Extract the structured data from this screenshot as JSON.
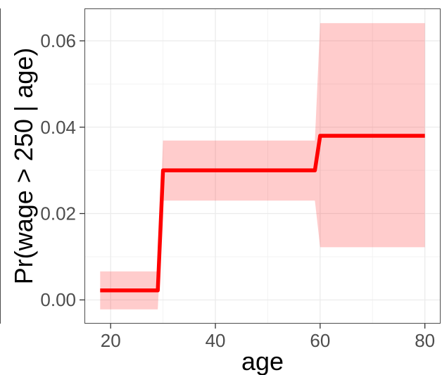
{
  "chart_data": {
    "type": "line",
    "title": "",
    "xlabel": "age",
    "ylabel": "Pr(wage > 250 | age)",
    "xlim": [
      15,
      83
    ],
    "ylim": [
      -0.0055,
      0.0675
    ],
    "x_ticks": [
      20,
      40,
      60,
      80
    ],
    "x_tick_labels": [
      "20",
      "40",
      "60",
      "80"
    ],
    "y_ticks": [
      0.0,
      0.02,
      0.04,
      0.06
    ],
    "y_tick_labels": [
      "0.00",
      "0.02",
      "0.04",
      "0.06"
    ],
    "grid": true,
    "series": [
      {
        "kind": "step-line",
        "color": "#ff0000",
        "x": [
          18,
          29,
          30,
          59,
          60,
          80
        ],
        "y": [
          0.0022,
          0.0022,
          0.03,
          0.03,
          0.038,
          0.038
        ]
      }
    ],
    "confidence_band": {
      "color": "#ff0000",
      "opacity": 0.2,
      "x": [
        18,
        29,
        30,
        59,
        60,
        80
      ],
      "lower": [
        -0.0022,
        -0.0022,
        0.023,
        0.023,
        0.0122,
        0.0122
      ],
      "upper": [
        0.0066,
        0.0066,
        0.0369,
        0.0369,
        0.0641,
        0.0641
      ]
    },
    "colors": {
      "panel_border": "#4d4d4d",
      "grid_major": "#ebebeb",
      "grid_minor": "#f3f3f3"
    }
  }
}
